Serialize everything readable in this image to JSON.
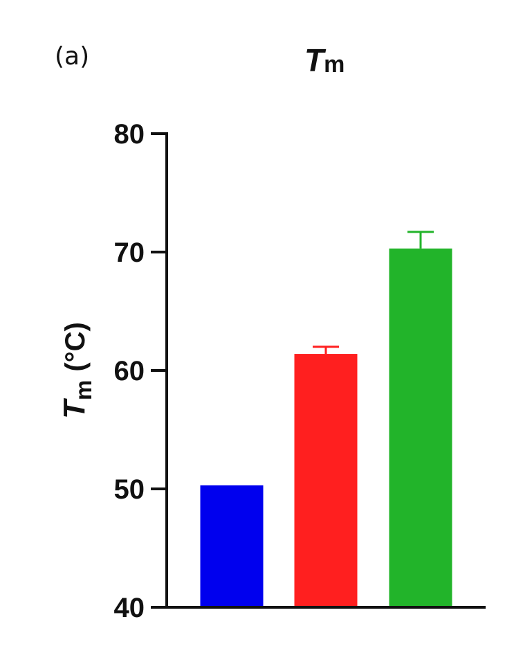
{
  "panel_label": "(a)",
  "chart_data": {
    "type": "bar",
    "title": {
      "main": "T",
      "subscript": "m"
    },
    "xlabel": "",
    "ylabel": {
      "main": "T",
      "subscript": "m",
      "unit": "(°C)"
    },
    "ylim": [
      40,
      80
    ],
    "yticks": [
      40,
      50,
      60,
      70,
      80
    ],
    "ytick_labels": [
      "40",
      "50",
      "60",
      "70",
      "80"
    ],
    "grid": false,
    "categories": [
      "",
      "",
      ""
    ],
    "values": [
      50.3,
      61.4,
      70.3
    ],
    "errors": [
      0,
      0.6,
      1.4
    ],
    "colors": [
      "#0000ee",
      "#ff1f1f",
      "#22b42a"
    ]
  }
}
